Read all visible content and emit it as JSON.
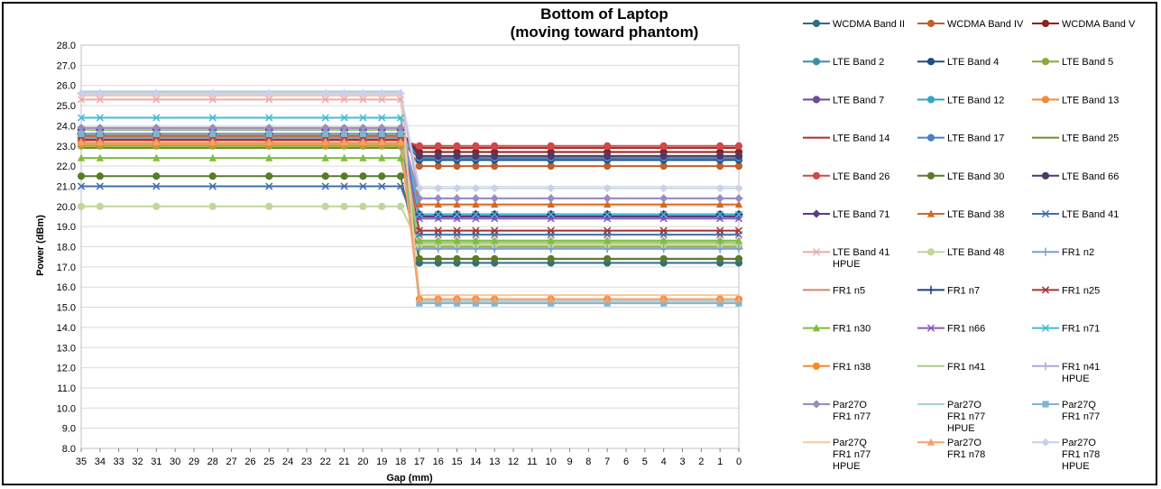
{
  "chart_data": {
    "type": "line",
    "title_lines": [
      "Bottom of Laptop",
      "(moving toward phantom)"
    ],
    "xlabel": "Gap (mm)",
    "ylabel": "Power (dBm)",
    "ylim": [
      8,
      28
    ],
    "ystep": 1,
    "x_ticks": [
      35,
      34,
      33,
      32,
      31,
      30,
      29,
      28,
      27,
      26,
      25,
      24,
      23,
      22,
      21,
      20,
      19,
      18,
      17,
      16,
      15,
      14,
      13,
      12,
      11,
      10,
      9,
      8,
      7,
      6,
      5,
      4,
      3,
      2,
      1,
      0
    ],
    "x_inverted": true,
    "grid": "horizontal",
    "legend_position": "right",
    "marker_x": [
      35,
      34,
      31,
      28,
      25,
      22,
      21,
      20,
      19,
      18,
      17,
      16,
      15,
      14,
      13,
      10,
      7,
      4,
      1,
      0
    ],
    "step": {
      "from_x": 18,
      "to_x": 17
    },
    "series": [
      {
        "name": "WCDMA Band II",
        "color": "#2f6f7f",
        "marker": "circle",
        "far": 23.3,
        "near": 17.2
      },
      {
        "name": "WCDMA Band IV",
        "color": "#c0612b",
        "marker": "circle",
        "far": 23.5,
        "near": 22.0
      },
      {
        "name": "WCDMA Band V",
        "color": "#8b2323",
        "marker": "circle",
        "far": 23.6,
        "near": 22.7
      },
      {
        "name": "LTE Band 2",
        "color": "#3a8fa8",
        "marker": "circle",
        "far": 23.3,
        "near": 22.4
      },
      {
        "name": "LTE Band 4",
        "color": "#1f4e79",
        "marker": "circle",
        "far": 23.6,
        "near": 22.3
      },
      {
        "name": "LTE Band 5",
        "color": "#8aaa3c",
        "marker": "circle",
        "far": 23.0,
        "near": 18.0
      },
      {
        "name": "LTE Band 7",
        "color": "#6a4a9a",
        "marker": "circle",
        "far": 23.6,
        "near": 19.6
      },
      {
        "name": "LTE Band 12",
        "color": "#33a3c8",
        "marker": "circle",
        "far": 23.6,
        "near": 22.4
      },
      {
        "name": "LTE Band 13",
        "color": "#f08a3a",
        "marker": "circle",
        "far": 23.4,
        "near": 22.5
      },
      {
        "name": "LTE Band 14",
        "color": "#b22c2c",
        "marker": "none",
        "far": 23.4,
        "near": 22.9
      },
      {
        "name": "LTE Band 17",
        "color": "#4a7fc0",
        "marker": "circle",
        "far": 23.6,
        "near": 22.4
      },
      {
        "name": "LTE Band 25",
        "color": "#6b8e23",
        "marker": "none",
        "far": 22.9,
        "near": 17.4
      },
      {
        "name": "LTE Band 26",
        "color": "#d04848",
        "marker": "circle",
        "far": 23.3,
        "near": 23.0
      },
      {
        "name": "LTE Band 30",
        "color": "#5b7a2e",
        "marker": "circle",
        "far": 21.5,
        "near": 17.4
      },
      {
        "name": "LTE Band 66",
        "color": "#4b3a6b",
        "marker": "circle",
        "far": 23.8,
        "near": 22.5
      },
      {
        "name": "LTE Band 71",
        "color": "#5b3a8a",
        "marker": "diamond",
        "far": 23.8,
        "near": 19.5
      },
      {
        "name": "LTE Band 38",
        "color": "#d2691e",
        "marker": "triangle",
        "far": 23.5,
        "near": 20.1
      },
      {
        "name": "LTE Band 41",
        "color": "#3f6fb0",
        "marker": "x",
        "far": 21.0,
        "near": 18.6
      },
      {
        "name": "LTE Band 41 HPUE",
        "color": "#f0a8a8",
        "marker": "x",
        "far": 25.3,
        "near": 18.3
      },
      {
        "name": "LTE Band 48",
        "color": "#c2d69b",
        "marker": "circle",
        "far": 20.0,
        "near": 18.1
      },
      {
        "name": "FR1 n2",
        "color": "#7aa0d6",
        "marker": "plus",
        "far": 23.4,
        "near": 17.9
      },
      {
        "name": "FR1 n5",
        "color": "#d9836b",
        "marker": "none",
        "far": 23.3,
        "near": 18.2
      },
      {
        "name": "FR1 n7",
        "color": "#1f3f7f",
        "marker": "plus",
        "far": 23.6,
        "near": 19.6
      },
      {
        "name": "FR1 n25",
        "color": "#a83232",
        "marker": "x",
        "far": 23.3,
        "near": 18.8
      },
      {
        "name": "FR1 n30",
        "color": "#7cbf3a",
        "marker": "triangle",
        "far": 22.4,
        "near": 18.3
      },
      {
        "name": "FR1 n66",
        "color": "#8a5ab8",
        "marker": "x",
        "far": 23.6,
        "near": 19.4
      },
      {
        "name": "FR1 n71",
        "color": "#3fbcd8",
        "marker": "x",
        "far": 24.4,
        "near": 19.6
      },
      {
        "name": "FR1 n38",
        "color": "#f58a2a",
        "marker": "circle",
        "far": 23.1,
        "near": 15.4
      },
      {
        "name": "FR1 n41",
        "color": "#a9c98a",
        "marker": "none",
        "far": 23.8,
        "near": 18.2
      },
      {
        "name": "FR1 n41 HPUE",
        "color": "#b4a6d6",
        "marker": "plus",
        "far": 25.6,
        "near": 20.4
      },
      {
        "name": "Par27O FR1 n77",
        "color": "#9a8ac0",
        "marker": "diamond",
        "far": 23.9,
        "near": 20.4
      },
      {
        "name": "Par27O FR1 n77 HPUE",
        "color": "#a8d0d8",
        "marker": "none",
        "far": 25.7,
        "near": 15.3
      },
      {
        "name": "Par27Q FR1 n77",
        "color": "#7fb6cf",
        "marker": "square",
        "far": 23.6,
        "near": 15.2
      },
      {
        "name": "Par27Q FR1 n77 HPUE",
        "color": "#f5c8a0",
        "marker": "none",
        "far": 25.5,
        "near": 15.6
      },
      {
        "name": "Par27O FR1 n78",
        "color": "#f5a06a",
        "marker": "triangle",
        "far": 23.2,
        "near": 15.4
      },
      {
        "name": "Par27O FR1 n78 HPUE",
        "color": "#c8d0ec",
        "marker": "diamond",
        "far": 25.6,
        "near": 20.9
      }
    ]
  },
  "legend_lines": [
    [
      "WCDMA Band II"
    ],
    [
      "WCDMA Band IV"
    ],
    [
      "WCDMA Band V"
    ],
    [
      "LTE Band 2"
    ],
    [
      "LTE Band 4"
    ],
    [
      "LTE Band 5"
    ],
    [
      "LTE Band 7"
    ],
    [
      "LTE Band 12"
    ],
    [
      "LTE Band 13"
    ],
    [
      "LTE Band 14"
    ],
    [
      "LTE Band 17"
    ],
    [
      "LTE Band 25"
    ],
    [
      "LTE Band 26"
    ],
    [
      "LTE Band 30"
    ],
    [
      "LTE Band 66"
    ],
    [
      "LTE Band 71"
    ],
    [
      "LTE Band 38"
    ],
    [
      "LTE Band 41"
    ],
    [
      "LTE Band 41",
      "HPUE"
    ],
    [
      "LTE Band 48"
    ],
    [
      "FR1 n2"
    ],
    [
      "FR1 n5"
    ],
    [
      "FR1 n7"
    ],
    [
      "FR1 n25"
    ],
    [
      "FR1 n30"
    ],
    [
      "FR1 n66"
    ],
    [
      "FR1 n71"
    ],
    [
      "FR1 n38"
    ],
    [
      "FR1 n41"
    ],
    [
      "FR1 n41",
      "HPUE"
    ],
    [
      "Par27O",
      "FR1 n77"
    ],
    [
      "Par27O",
      "FR1 n77",
      "HPUE"
    ],
    [
      "Par27Q",
      "FR1 n77"
    ],
    [
      "Par27Q",
      "FR1 n77",
      "HPUE"
    ],
    [
      "Par27O",
      "FR1 n78"
    ],
    [
      "Par27O",
      "FR1 n78",
      "HPUE"
    ]
  ]
}
